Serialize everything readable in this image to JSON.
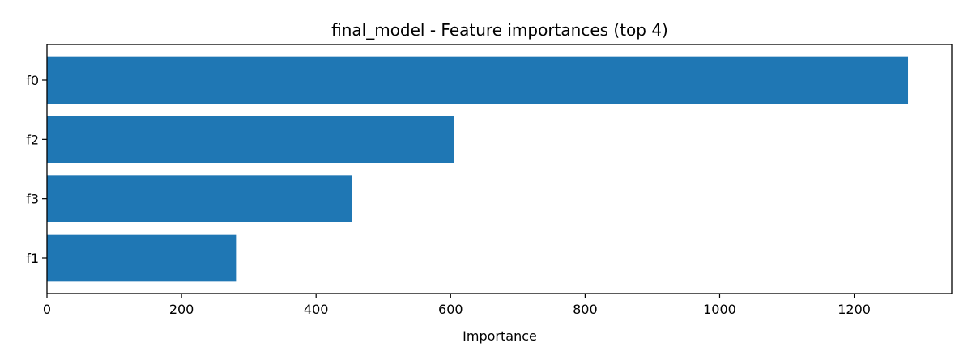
{
  "chart_data": {
    "type": "bar",
    "orientation": "horizontal",
    "title": "final_model - Feature importances (top 4)",
    "xlabel": "Importance",
    "ylabel": "",
    "categories": [
      "f0",
      "f2",
      "f3",
      "f1"
    ],
    "values": [
      1280,
      605,
      453,
      281
    ],
    "xlim": [
      0,
      1345
    ],
    "xticks": [
      0,
      200,
      400,
      600,
      800,
      1000,
      1200
    ],
    "grid": false,
    "legend": "none",
    "bar_color": "#1f77b4"
  }
}
